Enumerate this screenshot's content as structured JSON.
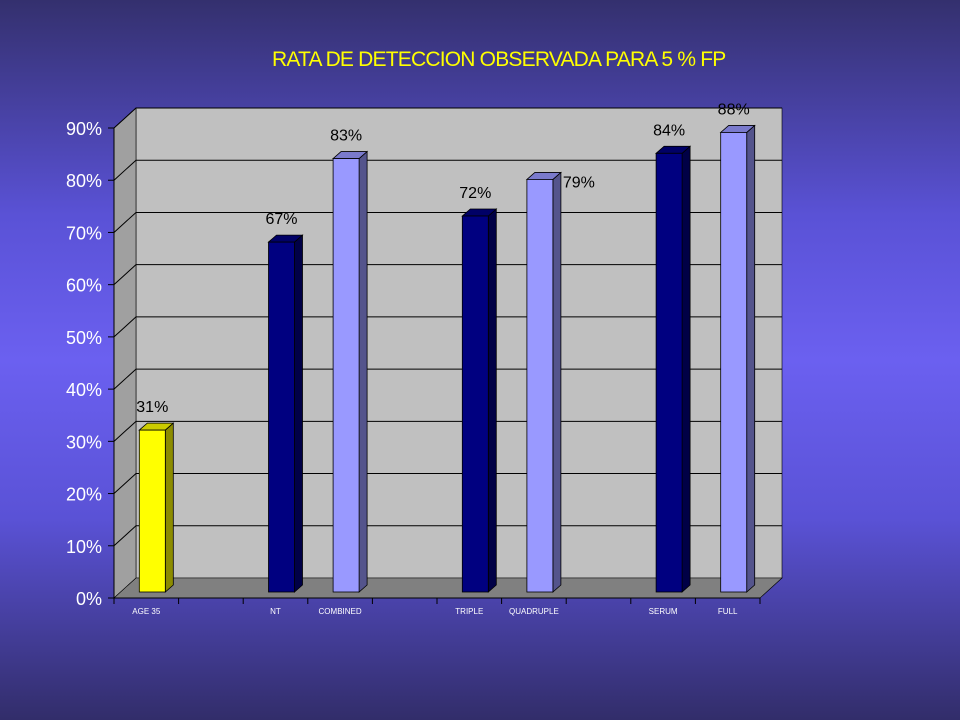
{
  "chart_data": {
    "type": "bar",
    "title": "RATA DE DETECCION OBSERVADA PARA 5 %  FP",
    "xlabel": "",
    "ylabel": "",
    "ylim": [
      0,
      0.9
    ],
    "y_ticks": [
      "0%",
      "10%",
      "20%",
      "30%",
      "40%",
      "50%",
      "60%",
      "70%",
      "80%",
      "90%"
    ],
    "grid": true,
    "legend": "none",
    "categories": [
      "AGE 35",
      "",
      "NT",
      "COMBINED",
      "",
      "TRIPLE",
      "QUADRUPLE",
      "",
      "SERUM",
      "FULL"
    ],
    "values": [
      0.31,
      null,
      0.67,
      0.83,
      null,
      0.72,
      0.79,
      null,
      0.84,
      0.88
    ],
    "data_labels": [
      "31%",
      "",
      "67%",
      "83%",
      "",
      "72%",
      "79%",
      "",
      "84%",
      "88%"
    ],
    "bar_colors": [
      "#ffff00",
      null,
      "#000080",
      "#9999ff",
      null,
      "#000080",
      "#9999ff",
      null,
      "#000080",
      "#9999ff"
    ],
    "colors": {
      "title": "#ffff00",
      "wall": "#c0c0c0",
      "floor": "#808080",
      "axis_text": "#ffffff",
      "grid": "#000000"
    }
  }
}
